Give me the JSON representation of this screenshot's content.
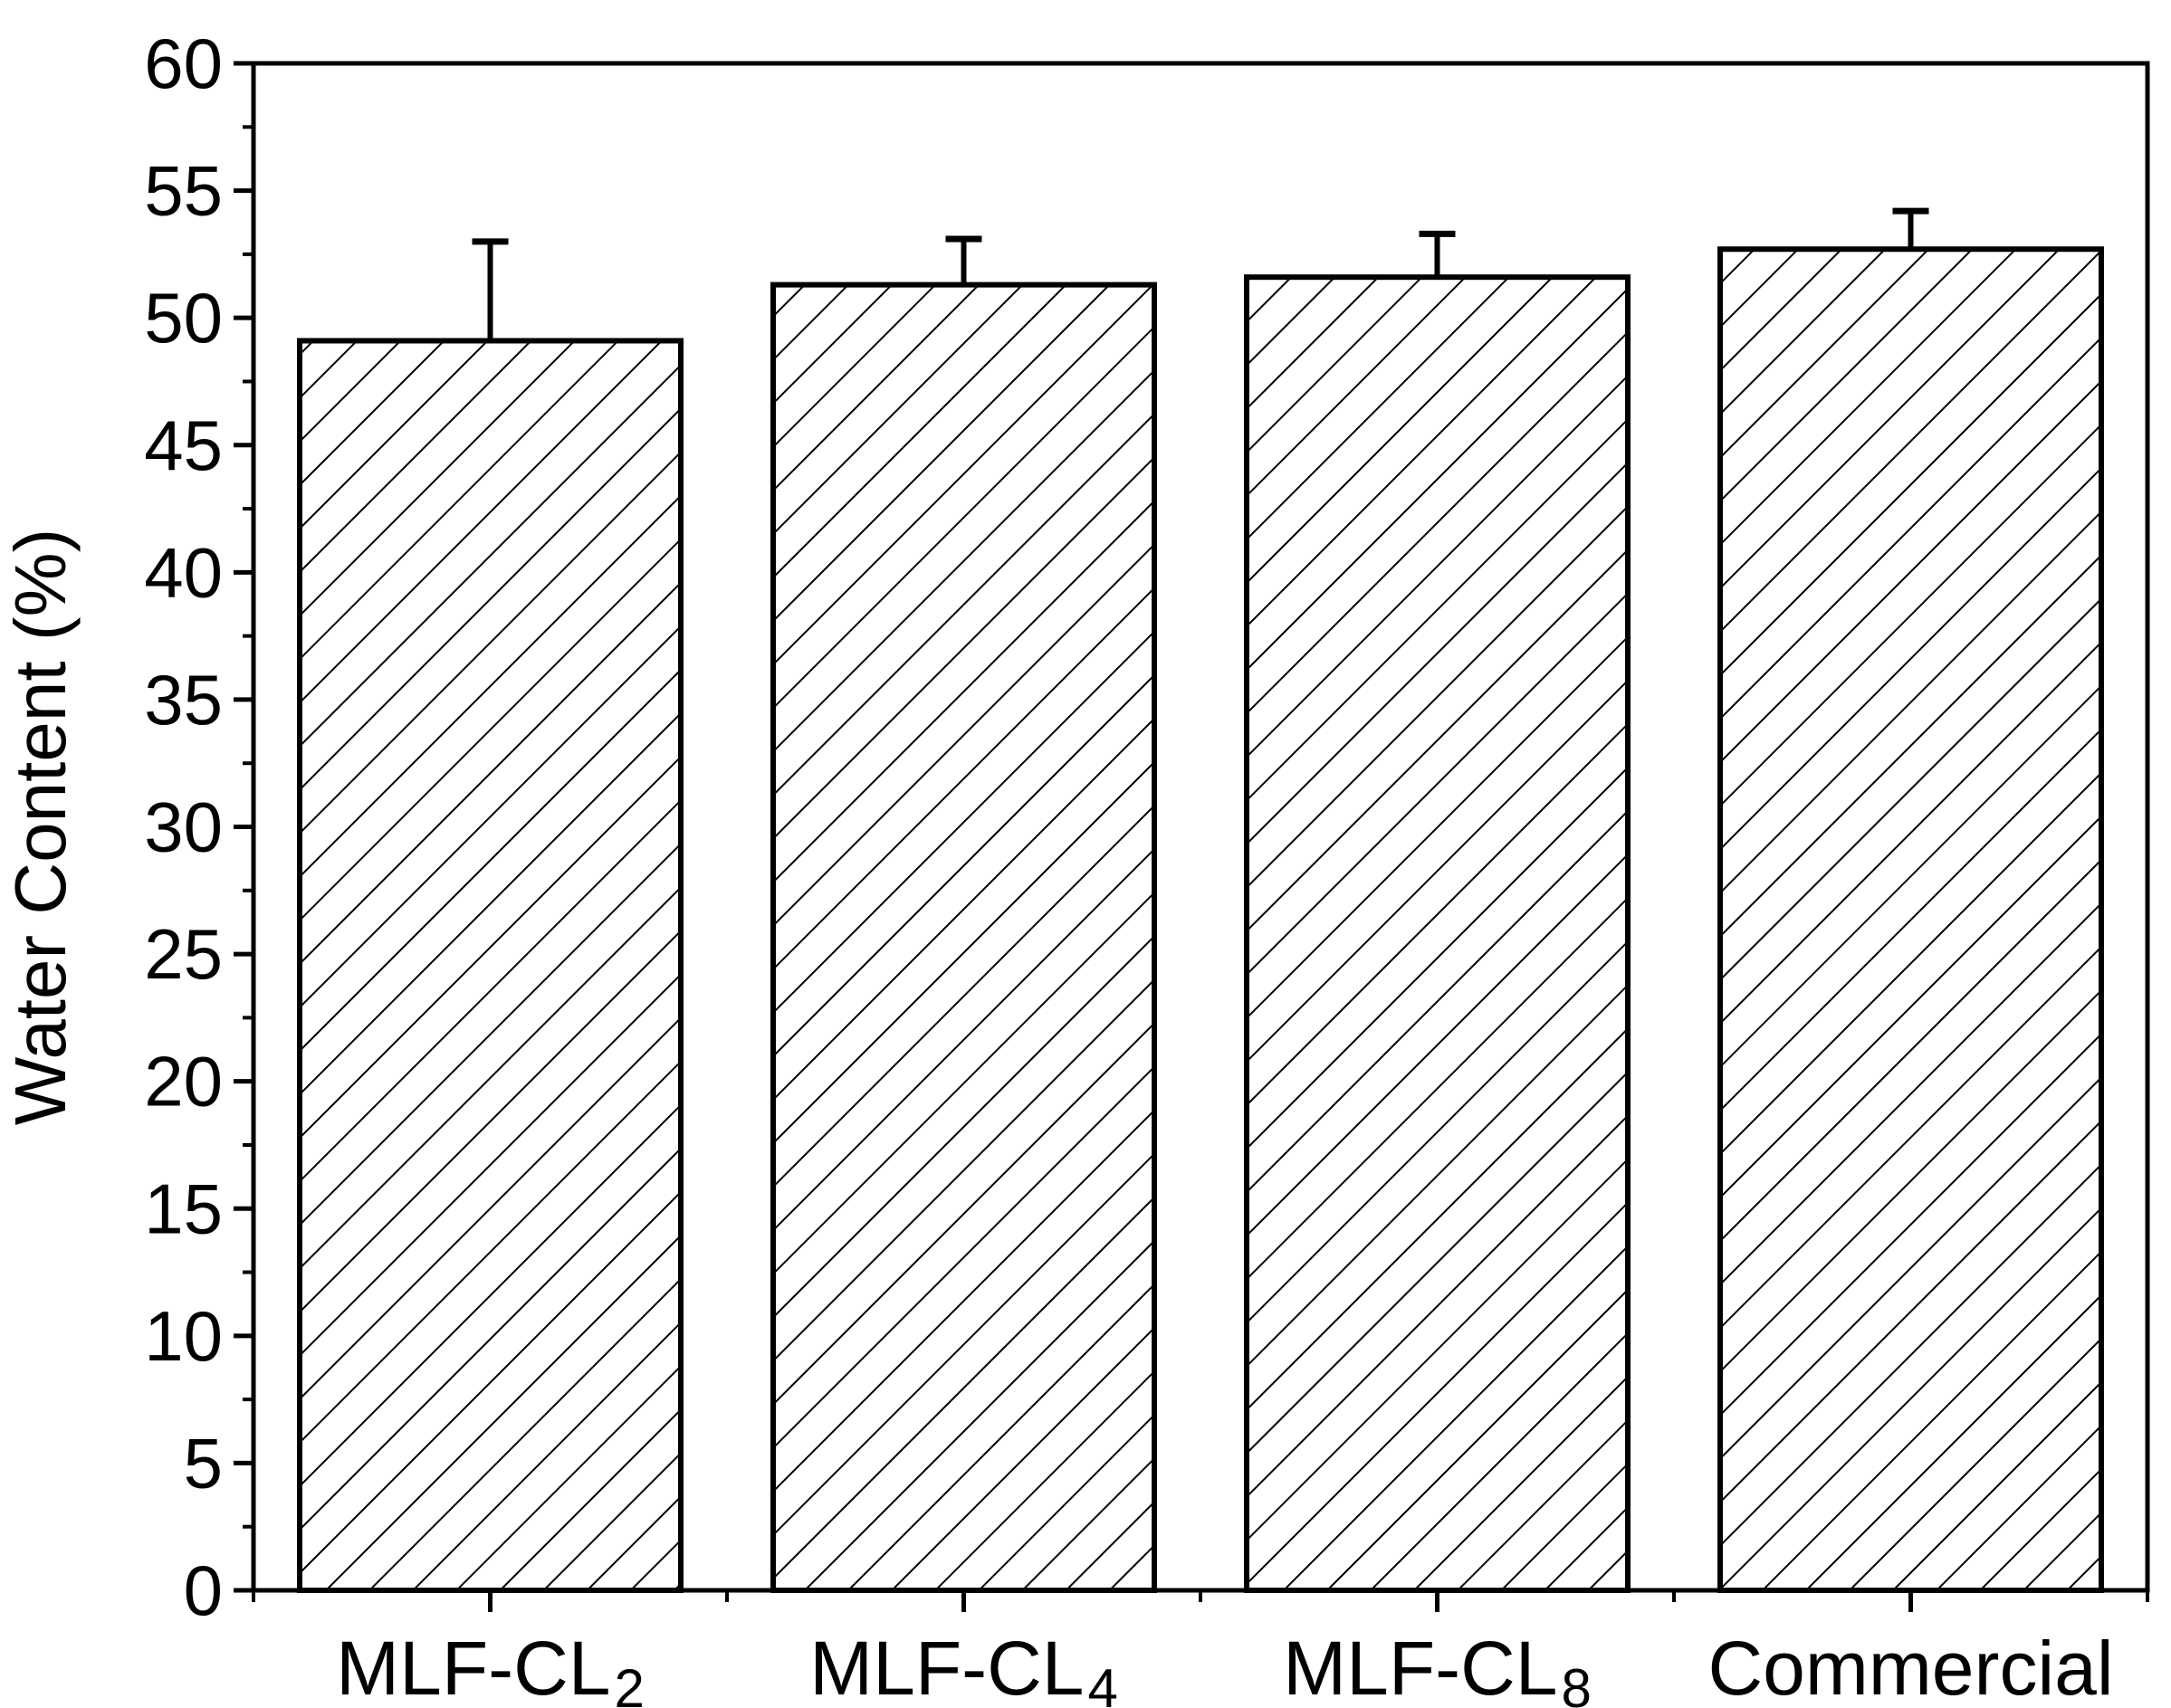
{
  "chart_data": {
    "type": "bar",
    "title": "",
    "xlabel": "",
    "ylabel": "Water Content (%)",
    "ylim": [
      0,
      60
    ],
    "yticks": [
      "0",
      "5",
      "10",
      "15",
      "20",
      "25",
      "30",
      "35",
      "40",
      "45",
      "50",
      "55",
      "60"
    ],
    "grid": false,
    "legend": "none",
    "fill_pattern": "diagonal-hatch",
    "colors": {
      "bar_fill": "#ffffff",
      "bar_stroke": "#000000",
      "hatch": "#000000",
      "axis": "#000000"
    },
    "categories": [
      {
        "base": "MLF-CL",
        "sub": "2"
      },
      {
        "base": "MLF-CL",
        "sub": "4"
      },
      {
        "base": "MLF-CL",
        "sub": "8"
      },
      {
        "base": "Commercial",
        "sub": ""
      }
    ],
    "values": [
      49.1,
      51.3,
      51.6,
      52.7
    ],
    "error": [
      3.9,
      1.8,
      1.7,
      1.5
    ]
  }
}
